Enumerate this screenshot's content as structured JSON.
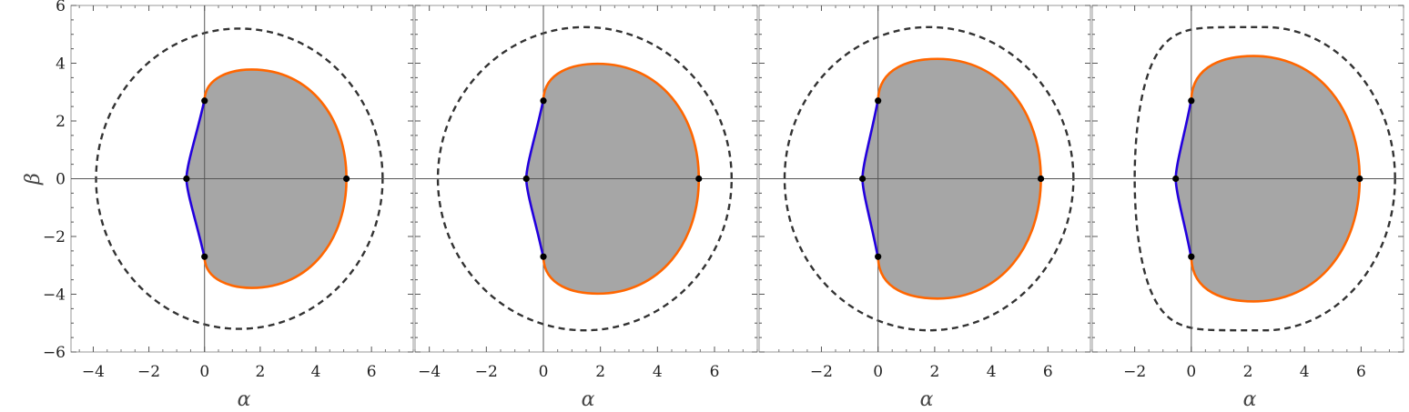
{
  "chart_data": [
    {
      "type": "line",
      "xlabel": "α",
      "ylabel": "β",
      "xlim": [
        -4.8,
        7.5
      ],
      "ylim": [
        -6.0,
        6.0
      ],
      "xticks": [
        -4,
        -2,
        0,
        2,
        4,
        6
      ],
      "yticks": [
        -6,
        -4,
        -2,
        0,
        2,
        4,
        6
      ],
      "xtick_labels": [
        "−4",
        "−2",
        "0",
        "2",
        "4",
        "6"
      ],
      "ytick_labels": [
        "−6",
        "−4",
        "−2",
        "0",
        "2",
        "4",
        "6"
      ],
      "colors": {
        "shadow_fill": "#a6a6a6",
        "prograde_edge": "#ff6600",
        "retrograde_edge": "#2200dd",
        "critical_curve": "#333333",
        "points": "#000000"
      },
      "shadow": {
        "x_left": -0.65,
        "x_right": 5.1,
        "y_top": 2.75,
        "x_at_top": 1.7,
        "y_max": 3.78
      },
      "critical_curve": {
        "center_x": 1.25,
        "radius_x": 5.15,
        "radius_y": 5.2
      },
      "points": [
        [
          0,
          2.7
        ],
        [
          0,
          -2.7
        ],
        [
          -0.65,
          0
        ],
        [
          5.1,
          0
        ]
      ]
    },
    {
      "type": "line",
      "xlabel": "α",
      "xlim": [
        -4.5,
        7.5
      ],
      "ylim": [
        -6.0,
        6.0
      ],
      "xticks": [
        -4,
        -2,
        0,
        2,
        4,
        6
      ],
      "xtick_labels": [
        "−4",
        "−2",
        "0",
        "2",
        "4",
        "6"
      ],
      "colors": {
        "shadow_fill": "#a6a6a6",
        "prograde_edge": "#ff6600",
        "retrograde_edge": "#2200dd",
        "critical_curve": "#333333",
        "points": "#000000"
      },
      "shadow": {
        "x_left": -0.6,
        "x_right": 5.45,
        "y_top": 2.75,
        "x_at_top": 1.9,
        "y_max": 3.98
      },
      "critical_curve": {
        "center_x": 1.45,
        "radius_x": 5.15,
        "radius_y": 5.25
      },
      "points": [
        [
          0,
          2.7
        ],
        [
          0,
          -2.7
        ],
        [
          -0.6,
          0
        ],
        [
          5.45,
          0
        ]
      ]
    },
    {
      "type": "line",
      "xlabel": "α",
      "xlim": [
        -4.2,
        7.5
      ],
      "ylim": [
        -6.0,
        6.0
      ],
      "xticks": [
        -2,
        0,
        2,
        4,
        6
      ],
      "xtick_labels": [
        "−2",
        "0",
        "2",
        "4",
        "6"
      ],
      "colors": {
        "shadow_fill": "#a6a6a6",
        "prograde_edge": "#ff6600",
        "retrograde_edge": "#2200dd",
        "critical_curve": "#333333",
        "points": "#000000"
      },
      "shadow": {
        "x_left": -0.55,
        "x_right": 5.75,
        "y_top": 2.75,
        "x_at_top": 2.1,
        "y_max": 4.15
      },
      "critical_curve": {
        "center_x": 1.8,
        "radius_x": 5.1,
        "radius_y": 5.25
      },
      "points": [
        [
          0,
          2.7
        ],
        [
          0,
          -2.7
        ],
        [
          -0.55,
          0
        ],
        [
          5.75,
          0
        ]
      ]
    },
    {
      "type": "line",
      "xlabel": "α",
      "xlim": [
        -3.5,
        7.5
      ],
      "ylim": [
        -6.0,
        6.0
      ],
      "xticks": [
        -2,
        0,
        2,
        4,
        6
      ],
      "xtick_labels": [
        "−2",
        "0",
        "2",
        "4",
        "6"
      ],
      "colors": {
        "shadow_fill": "#a6a6a6",
        "prograde_edge": "#ff6600",
        "retrograde_edge": "#2200dd",
        "critical_curve": "#333333",
        "points": "#000000"
      },
      "shadow": {
        "x_left": -0.55,
        "x_right": 5.95,
        "y_top": 2.75,
        "x_at_top": 2.2,
        "y_max": 4.25
      },
      "critical_curve": {
        "center_x": 2.6,
        "radius_x": 4.6,
        "radius_y": 5.25,
        "flattened_left": true
      },
      "points": [
        [
          0,
          2.7
        ],
        [
          0,
          -2.7
        ],
        [
          -0.55,
          0
        ],
        [
          5.95,
          0
        ]
      ]
    }
  ]
}
